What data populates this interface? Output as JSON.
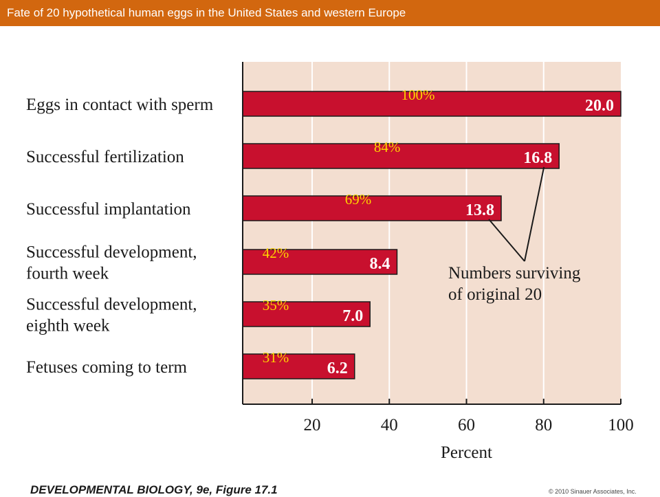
{
  "header": {
    "title": "Fate of 20 hypothetical human eggs in the United States and western Europe"
  },
  "chart_data": {
    "type": "bar",
    "orientation": "horizontal",
    "categories": [
      [
        "Eggs in contact with sperm"
      ],
      [
        "Successful fertilization"
      ],
      [
        "Successful implantation"
      ],
      [
        "Successful development,",
        "fourth week"
      ],
      [
        "Successful development,",
        "eighth week"
      ],
      [
        "Fetuses coming to term"
      ]
    ],
    "values": [
      100,
      84,
      69,
      42,
      35,
      31
    ],
    "percent_labels": [
      "100%",
      "84%",
      "69%",
      "42%",
      "35%",
      "31%"
    ],
    "count_labels": [
      "20.0",
      "16.8",
      "13.8",
      "8.4",
      "7.0",
      "6.2"
    ],
    "xlabel": "Percent",
    "xticks": [
      "20",
      "40",
      "60",
      "80",
      "100"
    ],
    "xtick_values": [
      20,
      40,
      60,
      80,
      100
    ],
    "xlim": [
      2,
      100
    ],
    "grid": true,
    "annotation": [
      "Numbers surviving",
      "of original 20"
    ],
    "annotation_targets": [
      1,
      2
    ],
    "colors": {
      "bar": "#c8102e",
      "plot_background": "#f3ded0",
      "grid": "#ffffff",
      "percent_label": "#ffd400",
      "count_label": "#ffffff"
    }
  },
  "footer": {
    "figure_credit": "DEVELOPMENTAL BIOLOGY, 9e, Figure 17.1",
    "copyright": "© 2010 Sinauer Associates, Inc."
  }
}
